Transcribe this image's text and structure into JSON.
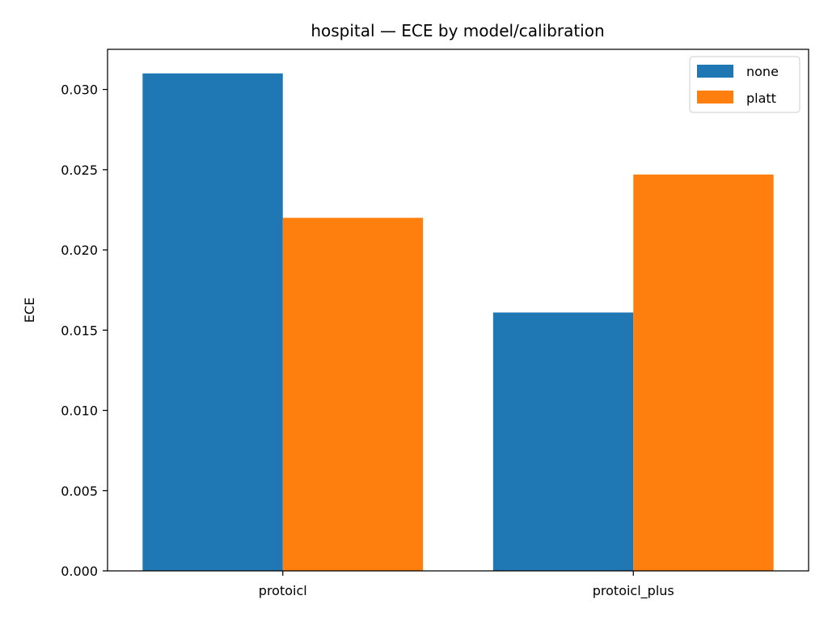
{
  "chart_data": {
    "type": "bar",
    "title": "hospital — ECE by model/calibration",
    "xlabel": "",
    "ylabel": "ECE",
    "categories": [
      "protoicl",
      "protoicl_plus"
    ],
    "series": [
      {
        "name": "none",
        "color": "#1f77b4",
        "values": [
          0.031,
          0.0161
        ]
      },
      {
        "name": "platt",
        "color": "#ff7f0e",
        "values": [
          0.022,
          0.0247
        ]
      }
    ],
    "ylim": [
      0,
      0.0325
    ],
    "yticks": [
      0.0,
      0.005,
      0.01,
      0.015,
      0.02,
      0.025,
      0.03
    ],
    "ytick_labels": [
      "0.000",
      "0.005",
      "0.010",
      "0.015",
      "0.020",
      "0.025",
      "0.030"
    ],
    "grid": false,
    "legend_position": "top-right"
  }
}
